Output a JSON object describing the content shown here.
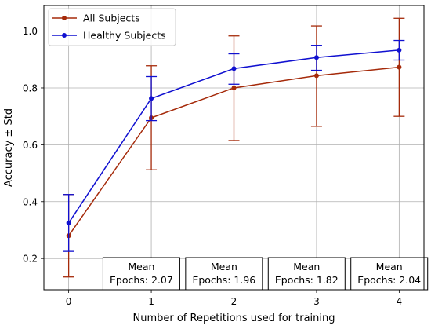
{
  "chart_data": {
    "type": "line",
    "title": "",
    "xlabel": "Number of Repetitions used for training",
    "ylabel": "Accuracy ± Std",
    "x": [
      0,
      1,
      2,
      3,
      4
    ],
    "xticks": [
      "0",
      "1",
      "2",
      "3",
      "4"
    ],
    "yticks": [
      "0.2",
      "0.4",
      "0.6",
      "0.8",
      "1.0"
    ],
    "ytick_values": [
      0.2,
      0.4,
      0.6,
      0.8,
      1.0
    ],
    "xlim": [
      -0.3,
      4.3
    ],
    "ylim": [
      0.09,
      1.09
    ],
    "grid": true,
    "legend_position": "top-left",
    "series": [
      {
        "name": "All Subjects",
        "color": "#a52a0a",
        "values": [
          0.28,
          0.695,
          0.8,
          0.843,
          0.873
        ],
        "err_low": [
          0.135,
          0.512,
          0.615,
          0.665,
          0.7
        ],
        "err_high": [
          0.425,
          0.878,
          0.983,
          1.018,
          1.045
        ]
      },
      {
        "name": "Healthy Subjects",
        "color": "#1010d0",
        "values": [
          0.325,
          0.763,
          0.868,
          0.907,
          0.933
        ],
        "err_low": [
          0.225,
          0.685,
          0.813,
          0.862,
          0.898
        ],
        "err_high": [
          0.425,
          0.84,
          0.92,
          0.95,
          0.967
        ]
      }
    ],
    "annotations": [
      {
        "x": 0.88,
        "line1": "Mean",
        "line2": "Epochs: 2.07"
      },
      {
        "x": 1.88,
        "line1": "Mean",
        "line2": "Epochs: 1.96"
      },
      {
        "x": 2.88,
        "line1": "Mean",
        "line2": "Epochs: 1.82"
      },
      {
        "x": 3.88,
        "line1": "Mean",
        "line2": "Epochs: 2.04"
      }
    ]
  }
}
